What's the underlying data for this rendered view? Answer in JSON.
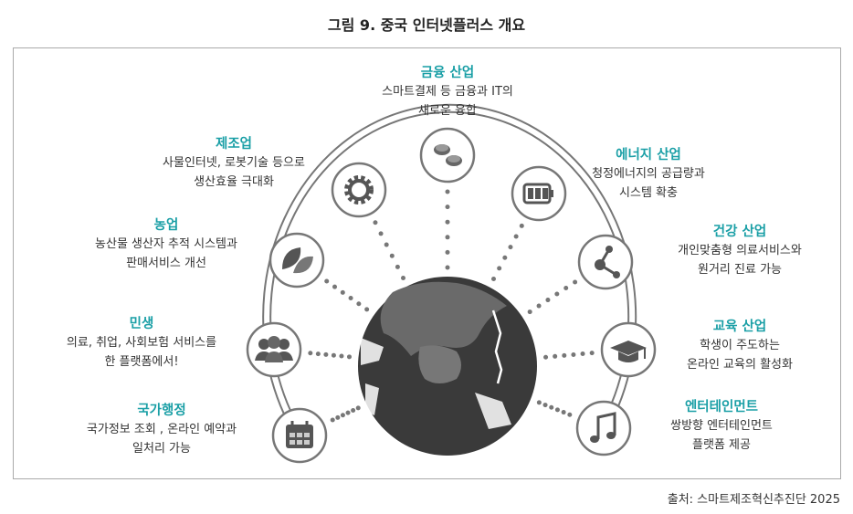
{
  "title": "그림 9. 중국 인터넷플러스 개요",
  "source": "출처: 스마트제조혁신추진단 2025",
  "colors": {
    "heading": "#1a9fa6",
    "icon": "#555555",
    "ring": "#777777",
    "globe": "#3a3a3a"
  },
  "sectors": [
    {
      "id": "finance",
      "title": "금융 산업",
      "desc": "스마트결제 등 금융과 IT의\n새로운 융합",
      "icon": "coins-icon"
    },
    {
      "id": "energy",
      "title": "에너지 산업",
      "desc": "청정에너지의 공급량과\n시스템 확충",
      "icon": "battery-icon"
    },
    {
      "id": "health",
      "title": "건강 산업",
      "desc": "개인맞춤형 의료서비스와\n원거리 진료 가능",
      "icon": "network-icon"
    },
    {
      "id": "education",
      "title": "교육 산업",
      "desc": "학생이 주도하는\n온라인 교육의 활성화",
      "icon": "graduation-cap-icon"
    },
    {
      "id": "entertainment",
      "title": "엔터테인먼트",
      "desc": "쌍방향 엔터테인먼트\n플랫폼 제공",
      "icon": "music-note-icon"
    },
    {
      "id": "manufacturing",
      "title": "제조업",
      "desc": "사물인터넷, 로봇기술 등으로\n생산효율 극대화",
      "icon": "gear-icon"
    },
    {
      "id": "agriculture",
      "title": "농업",
      "desc": "농산물 생산자 추적 시스템과\n판매서비스 개선",
      "icon": "leaf-icon"
    },
    {
      "id": "livelihood",
      "title": "민생",
      "desc": "의료, 취업, 사회보험 서비스를\n한 플랫폼에서!",
      "icon": "people-icon"
    },
    {
      "id": "administration",
      "title": "국가행정",
      "desc": "국가정보 조회 , 온라인 예약과\n일처리 가능",
      "icon": "calendar-icon"
    }
  ]
}
